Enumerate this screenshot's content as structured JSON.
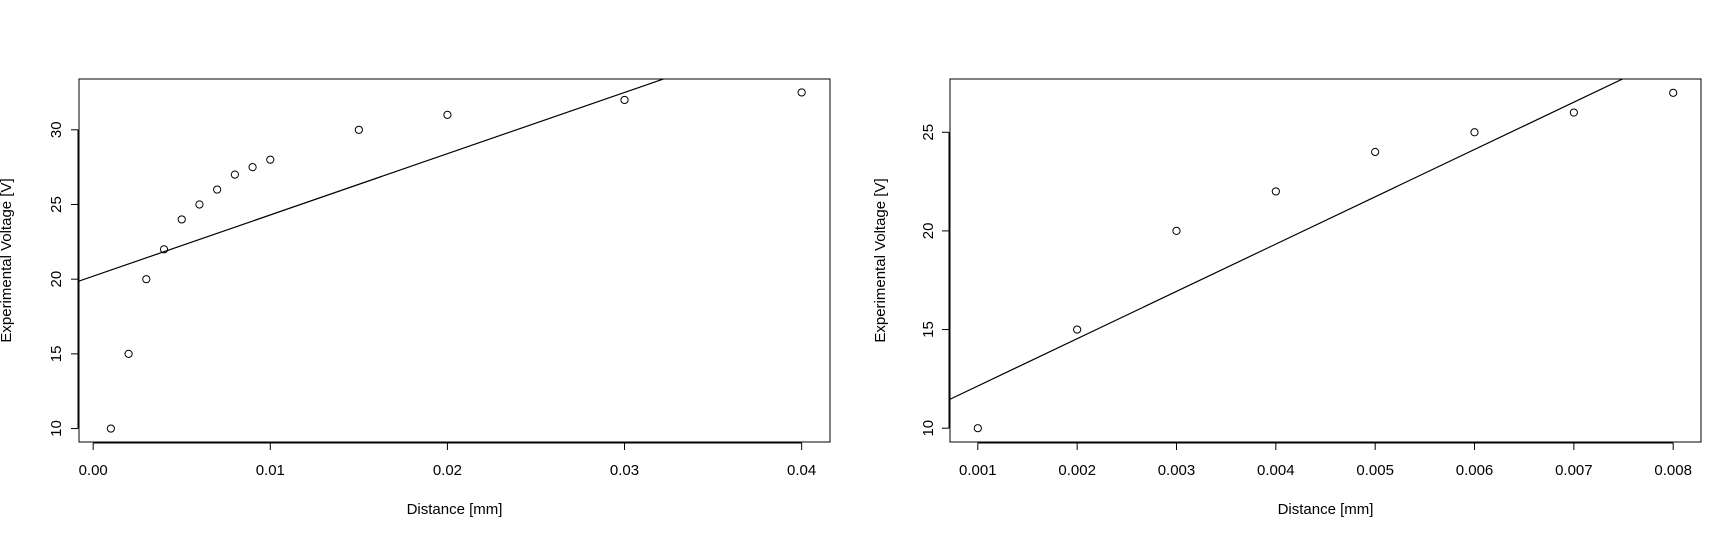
{
  "chart_data": [
    {
      "type": "scatter",
      "xlabel": "Distance [mm]",
      "ylabel": "Experimental Voltage [V]",
      "xlim": [
        -0.0008,
        0.0416
      ],
      "ylim": [
        9.1,
        33.4
      ],
      "xticks": [
        0.0,
        0.01,
        0.02,
        0.03,
        0.04
      ],
      "xtick_labels": [
        "0.00",
        "0.01",
        "0.02",
        "0.03",
        "0.04"
      ],
      "yticks": [
        10,
        15,
        20,
        25,
        30
      ],
      "ytick_labels": [
        "10",
        "15",
        "20",
        "25",
        "30"
      ],
      "grid": false,
      "points": {
        "x": [
          0.001,
          0.002,
          0.003,
          0.004,
          0.005,
          0.006,
          0.007,
          0.008,
          0.009,
          0.01,
          0.015,
          0.02,
          0.03,
          0.04
        ],
        "y": [
          10,
          15,
          20,
          22,
          24,
          25,
          26,
          27,
          27.5,
          28,
          30,
          31,
          32,
          32.5
        ]
      },
      "fit_line": {
        "intercept": 20.2,
        "slope": 410
      }
    },
    {
      "type": "scatter",
      "xlabel": "Distance [mm]",
      "ylabel": "Experimental Voltage [V]",
      "xlim": [
        0.00072,
        0.00828
      ],
      "ylim": [
        9.3,
        27.7
      ],
      "xticks": [
        0.001,
        0.002,
        0.003,
        0.004,
        0.005,
        0.006,
        0.007,
        0.008
      ],
      "xtick_labels": [
        "0.001",
        "0.002",
        "0.003",
        "0.004",
        "0.005",
        "0.006",
        "0.007",
        "0.008"
      ],
      "yticks": [
        10,
        15,
        20,
        25
      ],
      "ytick_labels": [
        "10",
        "15",
        "20",
        "25"
      ],
      "grid": false,
      "points": {
        "x": [
          0.001,
          0.002,
          0.003,
          0.004,
          0.005,
          0.006,
          0.007,
          0.008
        ],
        "y": [
          10,
          15,
          20,
          22,
          24,
          25,
          26,
          27
        ]
      },
      "fit_line": {
        "intercept": 9.74,
        "slope": 2398
      }
    }
  ]
}
